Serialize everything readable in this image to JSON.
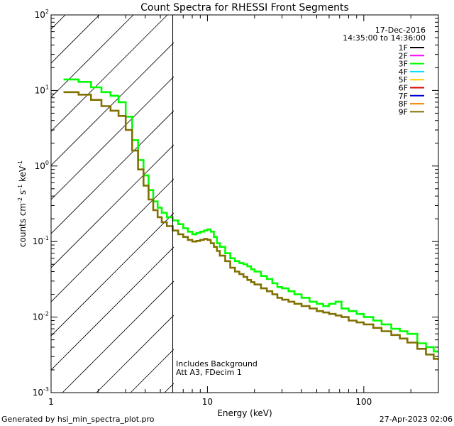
{
  "chart_data": {
    "type": "line",
    "title": "Count Spectra for RHESSI Front Segments",
    "xlabel": "Energy (keV)",
    "ylabel_parts": [
      "counts cm",
      "-2",
      " s",
      "-1",
      " keV",
      "-1"
    ],
    "xscale": "log",
    "yscale": "log",
    "xlim": [
      1,
      300
    ],
    "ylim": [
      0.001,
      100
    ],
    "x_ticks": [
      {
        "v": 1,
        "label": "1"
      },
      {
        "v": 10,
        "label": "10"
      },
      {
        "v": 100,
        "label": "100"
      }
    ],
    "y_ticks": [
      {
        "v": 0.001,
        "base": "10",
        "exp": "-3"
      },
      {
        "v": 0.01,
        "base": "10",
        "exp": "-2"
      },
      {
        "v": 0.1,
        "base": "10",
        "exp": "-1"
      },
      {
        "v": 1,
        "base": "10",
        "exp": "0"
      },
      {
        "v": 10,
        "base": "10",
        "exp": "1"
      },
      {
        "v": 100,
        "base": "10",
        "exp": "2"
      }
    ],
    "date": "17-Dec-2016",
    "time_range": "14:35:00 to 14:36:00",
    "attenuator_cutoff_kev": 6,
    "annotations": [
      "Includes Background",
      "Att A3, FDecim 1"
    ],
    "legend": [
      {
        "label": "1F",
        "color": "#000000"
      },
      {
        "label": "2F",
        "color": "#ff00ff"
      },
      {
        "label": "3F",
        "color": "#00ff00"
      },
      {
        "label": "4F",
        "color": "#00e0ff"
      },
      {
        "label": "5F",
        "color": "#ffcc00"
      },
      {
        "label": "6F",
        "color": "#dd0000"
      },
      {
        "label": "7F",
        "color": "#0000cc"
      },
      {
        "label": "8F",
        "color": "#ff8000"
      },
      {
        "label": "9F",
        "color": "#807000"
      }
    ],
    "series": [
      {
        "name": "3F",
        "color": "#00ff00",
        "points": [
          [
            1.2,
            14
          ],
          [
            1.5,
            13
          ],
          [
            1.8,
            11
          ],
          [
            2.1,
            9.5
          ],
          [
            2.4,
            8.5
          ],
          [
            2.7,
            7
          ],
          [
            3.0,
            4.5
          ],
          [
            3.3,
            2.2
          ],
          [
            3.6,
            1.2
          ],
          [
            3.9,
            0.75
          ],
          [
            4.2,
            0.48
          ],
          [
            4.5,
            0.34
          ],
          [
            4.8,
            0.28
          ],
          [
            5.1,
            0.24
          ],
          [
            5.5,
            0.21
          ],
          [
            6.0,
            0.19
          ],
          [
            6.5,
            0.17
          ],
          [
            7.0,
            0.15
          ],
          [
            7.5,
            0.135
          ],
          [
            8.0,
            0.125
          ],
          [
            8.5,
            0.13
          ],
          [
            9.0,
            0.135
          ],
          [
            9.5,
            0.14
          ],
          [
            10.0,
            0.145
          ],
          [
            10.5,
            0.135
          ],
          [
            11.0,
            0.115
          ],
          [
            11.5,
            0.095
          ],
          [
            12.0,
            0.085
          ],
          [
            13.0,
            0.07
          ],
          [
            14.0,
            0.06
          ],
          [
            15.0,
            0.055
          ],
          [
            16.0,
            0.052
          ],
          [
            17.0,
            0.05
          ],
          [
            18.0,
            0.047
          ],
          [
            19.0,
            0.043
          ],
          [
            20.0,
            0.04
          ],
          [
            22.0,
            0.035
          ],
          [
            24.0,
            0.032
          ],
          [
            26.0,
            0.028
          ],
          [
            28.0,
            0.025
          ],
          [
            30.0,
            0.024
          ],
          [
            33.0,
            0.022
          ],
          [
            36.0,
            0.02
          ],
          [
            40.0,
            0.018
          ],
          [
            45.0,
            0.016
          ],
          [
            50.0,
            0.015
          ],
          [
            55.0,
            0.014
          ],
          [
            60.0,
            0.015
          ],
          [
            66.0,
            0.016
          ],
          [
            72.0,
            0.013
          ],
          [
            80.0,
            0.012
          ],
          [
            90.0,
            0.011
          ],
          [
            100.0,
            0.01
          ],
          [
            115.0,
            0.009
          ],
          [
            130.0,
            0.008
          ],
          [
            150.0,
            0.007
          ],
          [
            170.0,
            0.0065
          ],
          [
            190.0,
            0.006
          ],
          [
            220.0,
            0.0045
          ],
          [
            250.0,
            0.004
          ],
          [
            280.0,
            0.0035
          ]
        ]
      },
      {
        "name": "9F",
        "color": "#807000",
        "points": [
          [
            1.2,
            9.5
          ],
          [
            1.5,
            8.8
          ],
          [
            1.8,
            7.5
          ],
          [
            2.1,
            6.2
          ],
          [
            2.4,
            5.4
          ],
          [
            2.7,
            4.6
          ],
          [
            3.0,
            3.0
          ],
          [
            3.3,
            1.6
          ],
          [
            3.6,
            0.9
          ],
          [
            3.9,
            0.55
          ],
          [
            4.2,
            0.36
          ],
          [
            4.5,
            0.26
          ],
          [
            4.8,
            0.21
          ],
          [
            5.1,
            0.18
          ],
          [
            5.5,
            0.16
          ],
          [
            6.0,
            0.14
          ],
          [
            6.5,
            0.125
          ],
          [
            7.0,
            0.115
          ],
          [
            7.5,
            0.105
          ],
          [
            8.0,
            0.1
          ],
          [
            8.5,
            0.102
          ],
          [
            9.0,
            0.105
          ],
          [
            9.5,
            0.108
          ],
          [
            10.0,
            0.105
          ],
          [
            10.5,
            0.095
          ],
          [
            11.0,
            0.085
          ],
          [
            11.5,
            0.075
          ],
          [
            12.0,
            0.065
          ],
          [
            13.0,
            0.055
          ],
          [
            14.0,
            0.045
          ],
          [
            15.0,
            0.04
          ],
          [
            16.0,
            0.037
          ],
          [
            17.0,
            0.034
          ],
          [
            18.0,
            0.031
          ],
          [
            19.0,
            0.029
          ],
          [
            20.0,
            0.027
          ],
          [
            22.0,
            0.024
          ],
          [
            24.0,
            0.022
          ],
          [
            26.0,
            0.02
          ],
          [
            28.0,
            0.018
          ],
          [
            30.0,
            0.017
          ],
          [
            33.0,
            0.016
          ],
          [
            36.0,
            0.015
          ],
          [
            40.0,
            0.014
          ],
          [
            45.0,
            0.013
          ],
          [
            50.0,
            0.012
          ],
          [
            55.0,
            0.0115
          ],
          [
            60.0,
            0.011
          ],
          [
            66.0,
            0.0105
          ],
          [
            72.0,
            0.01
          ],
          [
            80.0,
            0.009
          ],
          [
            90.0,
            0.0085
          ],
          [
            100.0,
            0.008
          ],
          [
            115.0,
            0.0072
          ],
          [
            130.0,
            0.0065
          ],
          [
            150.0,
            0.0058
          ],
          [
            170.0,
            0.0052
          ],
          [
            190.0,
            0.0046
          ],
          [
            220.0,
            0.0038
          ],
          [
            250.0,
            0.0032
          ],
          [
            280.0,
            0.0028
          ]
        ]
      }
    ]
  },
  "footer": {
    "generated_by": "Generated by hsi_min_spectra_plot.pro",
    "timestamp": "27-Apr-2023 02:06"
  }
}
